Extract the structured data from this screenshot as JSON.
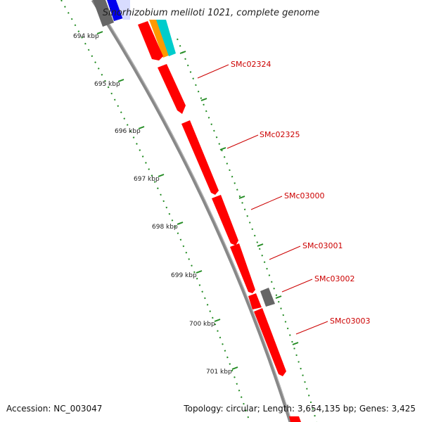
{
  "title": "Sinorhizobium meliloti 1021, complete genome",
  "footer": {
    "accession": "Accession: NC_003047",
    "topology": "Topology: circular; Length: 3,654,135 bp; Genes: 3,425"
  },
  "ticks": [
    "694 kbp",
    "695 kbp",
    "696 kbp",
    "697 kbp",
    "698 kbp",
    "699 kbp",
    "700 kbp",
    "701 kbp"
  ],
  "genes": [
    {
      "label": "SMc02324",
      "color": "#ff0000"
    },
    {
      "label": "SMc02325",
      "color": "#ff0000"
    },
    {
      "label": "SMc03000",
      "color": "#ff0000"
    },
    {
      "label": "SMc03001",
      "color": "#ff0000"
    },
    {
      "label": "SMc03002",
      "color": "#ff0000"
    },
    {
      "label": "SMc03003",
      "color": "#ff0000"
    }
  ],
  "colors": {
    "backbone": "#888888",
    "tick": "#228b22",
    "forward_gene": "#ff0000",
    "other_gene": "#666666",
    "label": "#cc0000",
    "blue": "#0000ee",
    "orange": "#ff9900",
    "cyan": "#00cccc"
  }
}
